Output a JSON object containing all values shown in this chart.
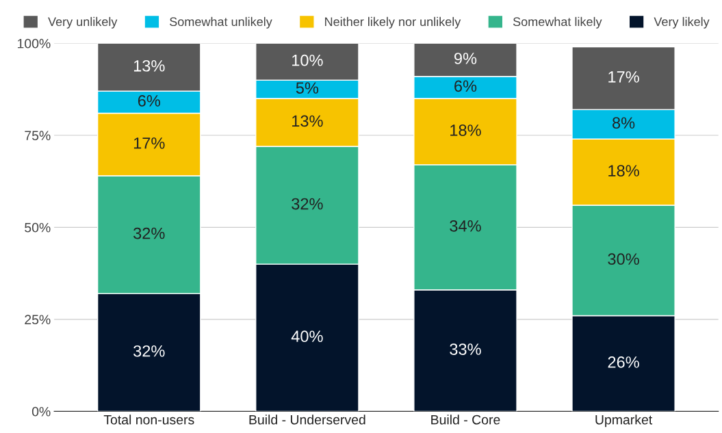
{
  "chart_data": {
    "type": "bar",
    "stacked": true,
    "categories": [
      "Total non-users",
      "Build - Underserved",
      "Build - Core",
      "Upmarket"
    ],
    "series": [
      {
        "name": "Very likely",
        "color": "#03142b",
        "values": [
          32,
          40,
          33,
          26
        ],
        "value_labels": [
          "32%",
          "40%",
          "33%",
          "26%"
        ]
      },
      {
        "name": "Somewhat likely",
        "color": "#35b58c",
        "values": [
          32,
          32,
          34,
          30
        ],
        "value_labels": [
          "32%",
          "32%",
          "34%",
          "30%"
        ]
      },
      {
        "name": "Neither likely nor unlikely",
        "color": "#f7c300",
        "values": [
          17,
          13,
          18,
          18
        ],
        "value_labels": [
          "17%",
          "13%",
          "18%",
          "18%"
        ]
      },
      {
        "name": "Somewhat unlikely",
        "color": "#00bee6",
        "values": [
          6,
          5,
          6,
          8
        ],
        "value_labels": [
          "6%",
          "5%",
          "6%",
          "8%"
        ]
      },
      {
        "name": "Very unlikely",
        "color": "#595959",
        "values": [
          13,
          10,
          9,
          17
        ],
        "value_labels": [
          "13%",
          "10%",
          "9%",
          "17%"
        ]
      }
    ],
    "ylim": [
      0,
      100
    ],
    "yticks": [
      {
        "value": 0,
        "label": "0%"
      },
      {
        "value": 25,
        "label": "25%"
      },
      {
        "value": 50,
        "label": "50%"
      },
      {
        "value": 75,
        "label": "75%"
      },
      {
        "value": 100,
        "label": "100%"
      }
    ],
    "grid": "y",
    "legend": "top"
  }
}
